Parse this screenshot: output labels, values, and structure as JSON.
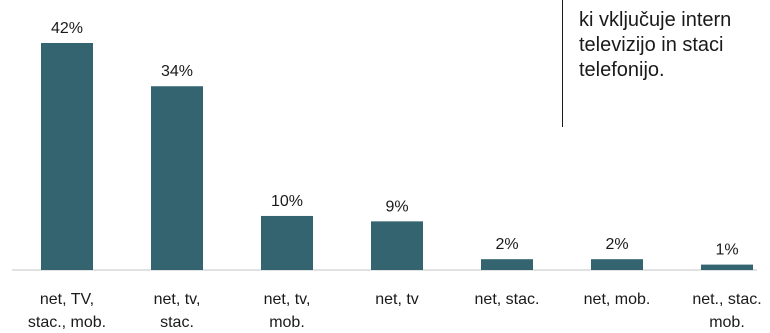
{
  "chart_data": {
    "type": "bar",
    "categories": [
      [
        "net, TV,",
        "stac., mob."
      ],
      [
        "net, tv,",
        "stac."
      ],
      [
        "net, tv,",
        "mob."
      ],
      [
        "net, tv"
      ],
      [
        "net, stac."
      ],
      [
        "net, mob."
      ],
      [
        "net., stac.",
        "mob."
      ]
    ],
    "values": [
      42,
      34,
      10,
      9,
      2,
      2,
      1
    ],
    "value_labels": [
      "42%",
      "34%",
      "10%",
      "9%",
      "2%",
      "2%",
      "1%"
    ],
    "unit": "%",
    "ylim": [
      0,
      42
    ],
    "grid": false,
    "legend": "none",
    "bar_color": "#336470",
    "axis_color": "#d9d9d9"
  },
  "callout": {
    "lines": [
      "",
      "ki vključuje intern",
      "televizijo in staci",
      "telefonijo."
    ]
  }
}
